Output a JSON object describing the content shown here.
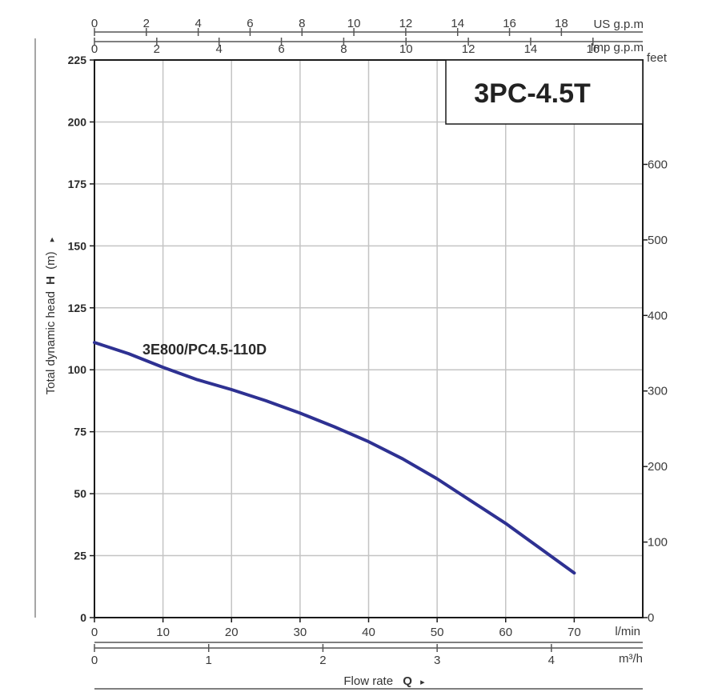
{
  "chart_data": {
    "type": "line",
    "model": "3PC-4.5T",
    "x_unit": "l/min",
    "y_unit": "m",
    "xlim": [
      0,
      80
    ],
    "ylim": [
      0,
      225
    ],
    "ylabel_parts": [
      "Total dynamic head",
      "H",
      "(m)",
      "▸"
    ],
    "xlabel_parts": [
      "Flow rate",
      "Q",
      "▸"
    ],
    "x_ticks": [
      0,
      10,
      20,
      30,
      40,
      50,
      60,
      70
    ],
    "y_ticks": [
      0,
      25,
      50,
      75,
      100,
      125,
      150,
      175,
      200,
      225
    ],
    "right_axis": {
      "unit": "feet",
      "ticks": [
        0,
        100,
        200,
        300,
        400,
        500,
        600
      ],
      "per_y_unit": 3.2808
    },
    "us_gpm_axis": {
      "unit": "US g.p.m",
      "ticks": [
        0,
        2,
        4,
        6,
        8,
        10,
        12,
        14,
        16,
        18
      ],
      "lpm_per_unit": 3.785
    },
    "imp_gpm_axis": {
      "unit": "Imp g.p.m",
      "ticks": [
        0,
        2,
        4,
        6,
        8,
        10,
        12,
        14,
        16
      ],
      "lpm_per_unit": 4.546
    },
    "m3h_axis": {
      "unit": "m³/h",
      "ticks": [
        0,
        1,
        2,
        3,
        4
      ],
      "lpm_per_unit": 16.667
    },
    "series": [
      {
        "name": "3E800/PC4.5-110D",
        "color": "#2e3192",
        "x": [
          0,
          5,
          10,
          15,
          20,
          25,
          30,
          35,
          40,
          45,
          50,
          55,
          60,
          65,
          70
        ],
        "y": [
          111,
          106.5,
          101,
          96,
          92,
          87.5,
          82.5,
          77,
          71,
          64,
          56,
          47,
          38,
          28,
          18
        ]
      }
    ]
  }
}
